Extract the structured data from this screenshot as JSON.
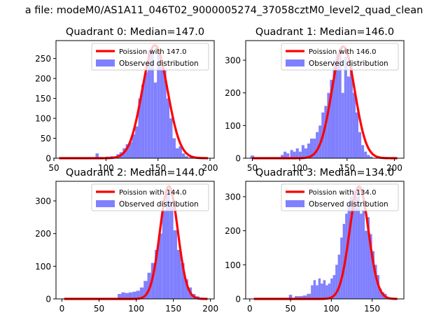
{
  "figure": {
    "suptitle": "a file: modeM0/AS1A11_046T02_9000005274_37058cztM0_level2_quad_clean",
    "colors": {
      "hist": "#8080ff",
      "poisson": "#ff0000",
      "axis": "#000000"
    }
  },
  "chart_data": [
    {
      "type": "bar",
      "title": "Quadrant 0: Median=147.0",
      "legend": [
        "Poission with 147.0",
        "Observed distribution"
      ],
      "legend_position": "top-right",
      "xlim": [
        52,
        204
      ],
      "ylim": [
        0,
        295
      ],
      "xticks": [
        50,
        100,
        150,
        200
      ],
      "yticks": [
        0,
        50,
        100,
        150,
        200,
        250
      ],
      "mean": 147.0,
      "curve_range": [
        55,
        198
      ],
      "curve_peak": 283,
      "hist_bins": [
        [
          90,
          93,
          12
        ],
        [
          93,
          96,
          3
        ],
        [
          100,
          103,
          4
        ],
        [
          104,
          107,
          5
        ],
        [
          108,
          111,
          5
        ],
        [
          110,
          113,
          10
        ],
        [
          113,
          116,
          15
        ],
        [
          116,
          119,
          25
        ],
        [
          119,
          122,
          35
        ],
        [
          122,
          125,
          40
        ],
        [
          125,
          128,
          60
        ],
        [
          128,
          131,
          80
        ],
        [
          131,
          134,
          150
        ],
        [
          134,
          137,
          185
        ],
        [
          137,
          140,
          215
        ],
        [
          140,
          143,
          270
        ],
        [
          143,
          146,
          270
        ],
        [
          146,
          149,
          190
        ],
        [
          149,
          152,
          268
        ],
        [
          152,
          155,
          230
        ],
        [
          155,
          158,
          220
        ],
        [
          158,
          161,
          150
        ],
        [
          161,
          164,
          100
        ],
        [
          164,
          167,
          50
        ],
        [
          167,
          170,
          25
        ],
        [
          170,
          173,
          30
        ],
        [
          173,
          176,
          12
        ],
        [
          176,
          179,
          5
        ],
        [
          180,
          183,
          3
        ]
      ]
    },
    {
      "type": "bar",
      "title": "Quadrant 1: Median=146.0",
      "legend": [
        "Poission with 146.0",
        "Observed distribution"
      ],
      "legend_position": "top-right",
      "xlim": [
        43,
        210
      ],
      "ylim": [
        0,
        360
      ],
      "xticks": [
        50,
        100,
        150,
        200
      ],
      "yticks": [
        0,
        100,
        200,
        300
      ],
      "mean": 146.0,
      "curve_range": [
        50,
        203
      ],
      "curve_peak": 342,
      "hist_bins": [
        [
          48,
          52,
          8
        ],
        [
          80,
          83,
          10
        ],
        [
          83,
          86,
          20
        ],
        [
          86,
          89,
          15
        ],
        [
          90,
          93,
          25
        ],
        [
          93,
          96,
          20
        ],
        [
          96,
          99,
          30
        ],
        [
          99,
          102,
          20
        ],
        [
          102,
          105,
          40
        ],
        [
          105,
          108,
          30
        ],
        [
          108,
          111,
          45
        ],
        [
          111,
          114,
          60
        ],
        [
          114,
          117,
          60
        ],
        [
          117,
          120,
          80
        ],
        [
          120,
          123,
          100
        ],
        [
          123,
          126,
          140
        ],
        [
          126,
          129,
          160
        ],
        [
          129,
          132,
          200
        ],
        [
          132,
          135,
          240
        ],
        [
          135,
          138,
          300
        ],
        [
          138,
          141,
          320
        ],
        [
          141,
          144,
          335
        ],
        [
          144,
          147,
          200
        ],
        [
          147,
          150,
          310
        ],
        [
          150,
          153,
          250
        ],
        [
          153,
          156,
          290
        ],
        [
          156,
          159,
          200
        ],
        [
          159,
          162,
          140
        ],
        [
          162,
          165,
          80
        ],
        [
          165,
          168,
          40
        ],
        [
          168,
          171,
          20
        ],
        [
          171,
          174,
          10
        ],
        [
          174,
          177,
          5
        ]
      ]
    },
    {
      "type": "bar",
      "title": "Quadrant 2: Median=144.0",
      "legend": [
        "Poission with 144.0",
        "Observed distribution"
      ],
      "legend_position": "top-right",
      "xlim": [
        -8,
        205
      ],
      "ylim": [
        0,
        360
      ],
      "xticks": [
        0,
        50,
        100,
        150,
        200
      ],
      "yticks": [
        0,
        100,
        200,
        300
      ],
      "mean": 144.0,
      "curve_range": [
        3,
        196
      ],
      "curve_peak": 345,
      "hist_bins": [
        [
          75,
          80,
          15
        ],
        [
          80,
          85,
          20
        ],
        [
          85,
          90,
          18
        ],
        [
          90,
          95,
          20
        ],
        [
          95,
          100,
          22
        ],
        [
          100,
          105,
          25
        ],
        [
          105,
          110,
          35
        ],
        [
          110,
          115,
          55
        ],
        [
          115,
          120,
          80
        ],
        [
          120,
          125,
          110
        ],
        [
          125,
          130,
          150
        ],
        [
          130,
          135,
          200
        ],
        [
          135,
          140,
          270
        ],
        [
          140,
          145,
          330
        ],
        [
          145,
          150,
          300
        ],
        [
          150,
          155,
          210
        ],
        [
          155,
          160,
          150
        ],
        [
          160,
          165,
          110
        ],
        [
          165,
          170,
          60
        ],
        [
          170,
          175,
          35
        ],
        [
          175,
          180,
          15
        ],
        [
          180,
          185,
          8
        ]
      ]
    },
    {
      "type": "bar",
      "title": "Quadrant 3: Median=134.0",
      "legend": [
        "Poission with 134.0",
        "Observed distribution"
      ],
      "legend_position": "top-right",
      "xlim": [
        -5,
        189
      ],
      "ylim": [
        0,
        345
      ],
      "xticks": [
        0,
        50,
        100,
        150
      ],
      "yticks": [
        0,
        100,
        200,
        300
      ],
      "mean": 134.0,
      "curve_range": [
        5,
        181
      ],
      "curve_peak": 330,
      "hist_bins": [
        [
          48,
          52,
          12
        ],
        [
          55,
          60,
          8
        ],
        [
          60,
          65,
          8
        ],
        [
          65,
          70,
          10
        ],
        [
          70,
          75,
          15
        ],
        [
          75,
          78,
          40
        ],
        [
          78,
          81,
          55
        ],
        [
          81,
          84,
          40
        ],
        [
          84,
          87,
          60
        ],
        [
          87,
          90,
          45
        ],
        [
          90,
          93,
          55
        ],
        [
          93,
          96,
          40
        ],
        [
          96,
          99,
          45
        ],
        [
          99,
          102,
          60
        ],
        [
          102,
          105,
          70
        ],
        [
          105,
          108,
          100
        ],
        [
          108,
          111,
          130
        ],
        [
          111,
          114,
          180
        ],
        [
          114,
          117,
          220
        ],
        [
          117,
          120,
          250
        ],
        [
          120,
          123,
          280
        ],
        [
          123,
          126,
          300
        ],
        [
          126,
          129,
          320
        ],
        [
          129,
          132,
          300
        ],
        [
          132,
          135,
          330
        ],
        [
          135,
          138,
          250
        ],
        [
          138,
          141,
          260
        ],
        [
          141,
          144,
          200
        ],
        [
          144,
          147,
          240
        ],
        [
          147,
          150,
          190
        ],
        [
          150,
          153,
          140
        ],
        [
          153,
          156,
          100
        ],
        [
          156,
          159,
          70
        ],
        [
          159,
          162,
          30
        ],
        [
          162,
          165,
          20
        ],
        [
          165,
          168,
          15
        ]
      ]
    }
  ]
}
